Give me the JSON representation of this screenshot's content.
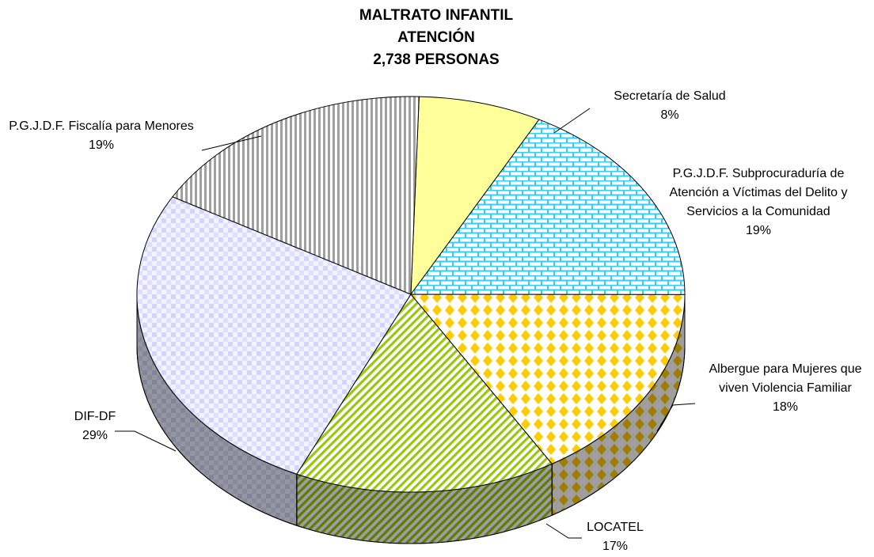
{
  "chart_data": {
    "type": "pie3d",
    "title": "MALTRATO INFANTIL\nATENCIÓN\n2,738 PERSONAS",
    "categories": [
      "Secretaría de Salud",
      "P.G.J.D.F. Subprocuraduría de Atención a Víctimas del Delito y Servicios a la Comunidad",
      "Albergue para Mujeres que viven Violencia Familiar",
      "LOCATEL",
      "DIF-DF",
      "P.G.J.D.F. Fiscalía para Menores"
    ],
    "values": [
      8,
      19,
      18,
      17,
      29,
      19
    ],
    "value_labels": [
      "8%",
      "19%",
      "18%",
      "17%",
      "29%",
      "19%"
    ],
    "colors": [
      "#ffff99",
      "#33ccff",
      "#ffcc00",
      "#99cc00",
      "#ccccff",
      "#a0a0a0"
    ]
  }
}
